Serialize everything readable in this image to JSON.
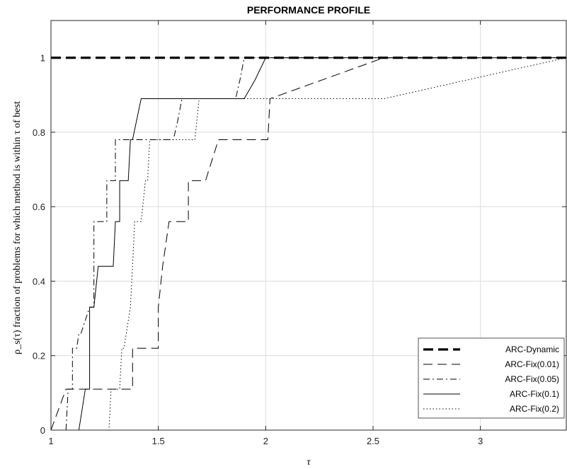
{
  "chart_data": {
    "type": "line",
    "title": "PERFORMANCE PROFILE",
    "xlabel": "τ",
    "ylabel": "ρ_s(τ) fraction of problems for which method is within  τ of best",
    "xlim": [
      1,
      3.4
    ],
    "ylim": [
      0,
      1.1
    ],
    "grid": true,
    "legend_position": "bottom-right",
    "xticks": [
      1,
      1.5,
      2,
      2.5,
      3
    ],
    "xtick_labels": [
      "1",
      "1.5",
      "2",
      "2.5",
      "3"
    ],
    "yticks": [
      0,
      0.2,
      0.4,
      0.6,
      0.8,
      1
    ],
    "ytick_labels": [
      "0",
      "0.2",
      "0.4",
      "0.6",
      "0.8",
      "1"
    ],
    "series": [
      {
        "name": "ARC-Dynamic",
        "style": "thick-dashed",
        "x": [
          1,
          3.4
        ],
        "y": [
          1,
          1
        ]
      },
      {
        "name": "ARC-Fix(0.01)",
        "style": "dashed",
        "x": [
          1,
          1.07,
          1.07,
          1.38,
          1.38,
          1.39,
          1.39,
          1.5,
          1.5,
          1.52,
          1.55,
          1.58,
          1.58,
          1.64,
          1.64,
          1.65,
          1.65,
          1.72,
          1.78,
          1.78,
          1.91,
          1.91,
          2.01,
          2.02,
          2.02,
          2.55,
          3.4
        ],
        "y": [
          0,
          0.11,
          0.11,
          0.11,
          0.22,
          0.22,
          0.22,
          0.22,
          0.33,
          0.44,
          0.56,
          0.56,
          0.56,
          0.56,
          0.67,
          0.67,
          0.67,
          0.67,
          0.78,
          0.78,
          0.78,
          0.78,
          0.78,
          0.89,
          0.89,
          1,
          1
        ]
      },
      {
        "name": "ARC-Fix(0.05)",
        "style": "dash-dot",
        "x": [
          1.07,
          1.08,
          1.1,
          1.1,
          1.12,
          1.13,
          1.14,
          1.18,
          1.18,
          1.2,
          1.2,
          1.2,
          1.21,
          1.24,
          1.26,
          1.26,
          1.3,
          1.3,
          1.55,
          1.57,
          1.59,
          1.61,
          1.62,
          1.66,
          1.86,
          1.88,
          1.9,
          1.95,
          3.4
        ],
        "y": [
          0,
          0.11,
          0.11,
          0.22,
          0.22,
          0.26,
          0.26,
          0.33,
          0.33,
          0.33,
          0.44,
          0.56,
          0.56,
          0.56,
          0.56,
          0.67,
          0.67,
          0.78,
          0.78,
          0.78,
          0.83,
          0.89,
          0.89,
          0.89,
          0.89,
          0.94,
          1,
          1,
          1
        ]
      },
      {
        "name": "ARC-Fix(0.1)",
        "style": "solid",
        "x": [
          1,
          1.13,
          1.16,
          1.17,
          1.18,
          1.18,
          1.19,
          1.2,
          1.22,
          1.22,
          1.29,
          1.29,
          1.3,
          1.32,
          1.32,
          1.33,
          1.36,
          1.37,
          1.38,
          1.42,
          1.43,
          1.9,
          1.95,
          2,
          3.4
        ],
        "y": [
          0,
          0,
          0.11,
          0.11,
          0.11,
          0.33,
          0.33,
          0.33,
          0.44,
          0.44,
          0.44,
          0.44,
          0.56,
          0.56,
          0.67,
          0.67,
          0.67,
          0.78,
          0.78,
          0.89,
          0.89,
          0.89,
          0.94,
          1,
          1
        ]
      },
      {
        "name": "ARC-Fix(0.2)",
        "style": "dotted",
        "x": [
          1,
          1.27,
          1.28,
          1.31,
          1.32,
          1.33,
          1.34,
          1.37,
          1.38,
          1.39,
          1.42,
          1.44,
          1.45,
          1.46,
          1.46,
          1.5,
          1.55,
          1.65,
          1.67,
          1.69,
          1.74,
          2.55,
          3.4
        ],
        "y": [
          0,
          0,
          0.11,
          0.11,
          0.11,
          0.22,
          0.22,
          0.33,
          0.44,
          0.56,
          0.56,
          0.67,
          0.67,
          0.78,
          0.78,
          0.78,
          0.78,
          0.78,
          0.78,
          0.89,
          0.89,
          0.89,
          1
        ]
      }
    ]
  }
}
